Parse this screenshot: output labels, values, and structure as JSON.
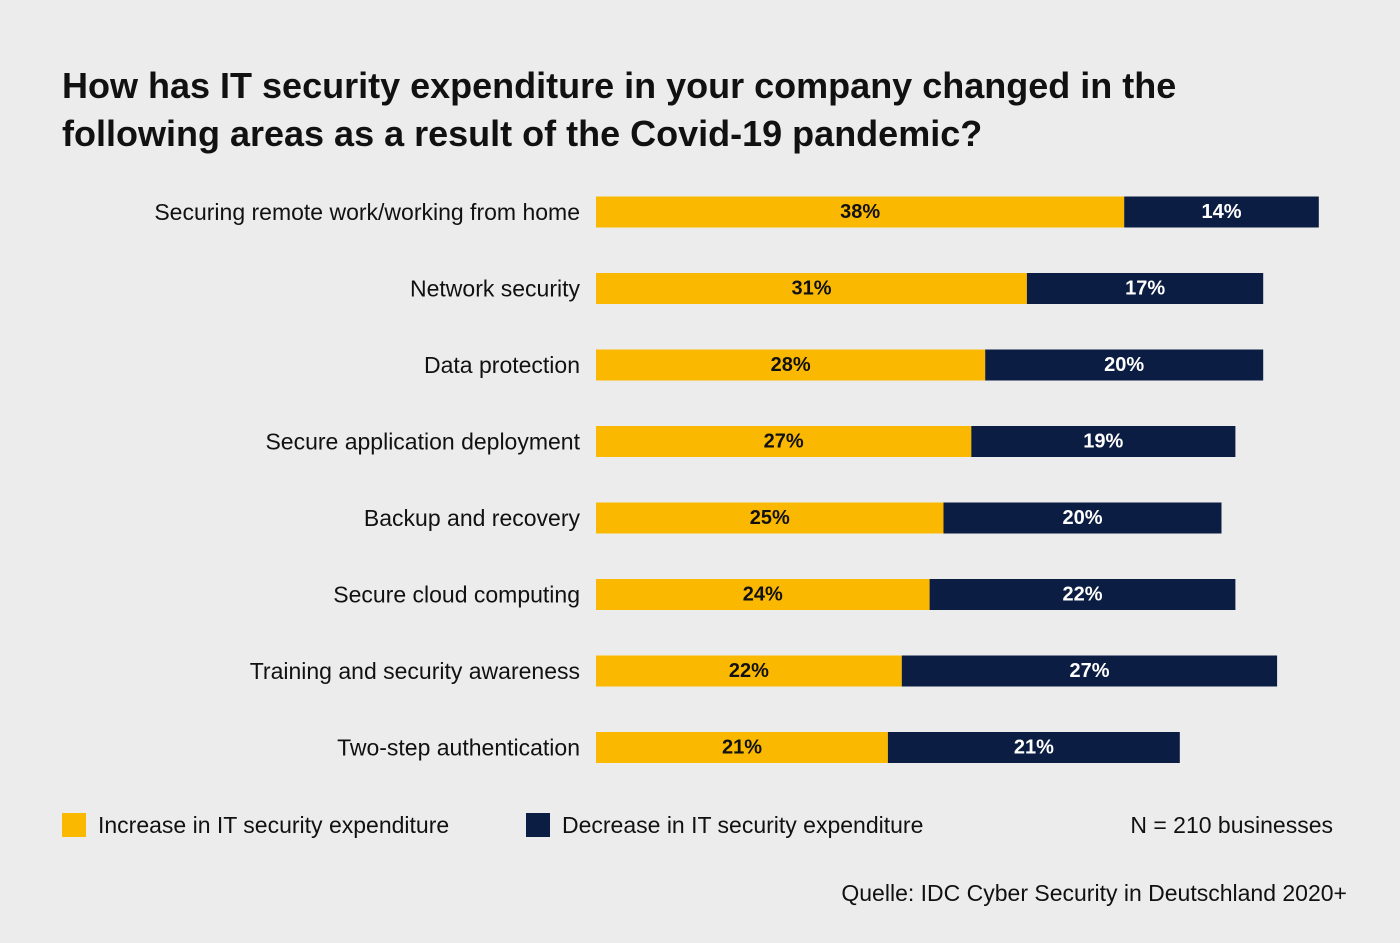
{
  "chart_data": {
    "type": "bar",
    "orientation": "horizontal",
    "stacked": true,
    "title_lines": [
      "How has IT security expenditure in your company changed in the",
      "following areas as a result of the Covid-19 pandemic?"
    ],
    "categories": [
      "Securing remote work/working from home",
      "Network security",
      "Data protection",
      "Secure application deployment",
      "Backup and recovery",
      "Secure cloud computing",
      "Training and security awareness",
      "Two-step authentication"
    ],
    "series": [
      {
        "name": "Increase in IT security expenditure",
        "color": "#fbb800",
        "label_color": "#111111",
        "values": [
          38,
          31,
          28,
          27,
          25,
          24,
          22,
          21
        ]
      },
      {
        "name": "Decrease in IT security expenditure",
        "color": "#0b1d42",
        "label_color": "#ffffff",
        "values": [
          14,
          17,
          20,
          19,
          20,
          22,
          27,
          21
        ]
      }
    ],
    "value_suffix": "%",
    "grid": false,
    "legend_position": "bottom-left"
  },
  "note": "N = 210 businesses",
  "source": "Quelle: IDC Cyber Security in Deutschland 2020+"
}
